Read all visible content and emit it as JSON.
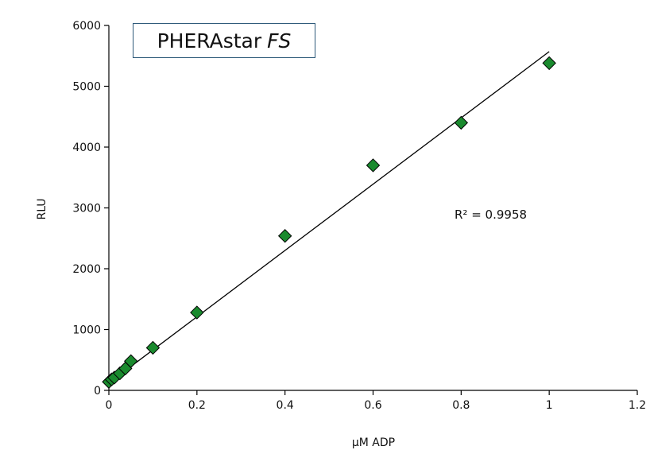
{
  "chart_data": {
    "type": "scatter",
    "title": "",
    "xlabel": "μM ADP",
    "ylabel": "RLU",
    "xlim": [
      0,
      1.2
    ],
    "ylim": [
      0,
      6000
    ],
    "x_ticks": [
      "0",
      "0.2",
      "0.4",
      "0.6",
      "0.8",
      "1",
      "1.2"
    ],
    "y_ticks": [
      "0",
      "1000",
      "2000",
      "3000",
      "4000",
      "5000",
      "6000"
    ],
    "grid": false,
    "series": [
      {
        "marker": "diamond",
        "color": "#1a8a2e",
        "x": [
          0,
          0.00625,
          0.0125,
          0.025,
          0.0375,
          0.05,
          0.1,
          0.2,
          0.4,
          0.6,
          0.8,
          1.0
        ],
        "y": [
          140,
          180,
          210,
          280,
          360,
          480,
          700,
          1280,
          2540,
          3700,
          4400,
          5380
        ]
      }
    ],
    "trendline": {
      "type": "linear",
      "x_range": [
        0,
        1.0
      ],
      "y_range": [
        120,
        5570
      ],
      "color": "#000000"
    },
    "annotations": [
      {
        "text": "R² = 0.9958"
      }
    ],
    "label_box": {
      "text_plain": "PHERAstar",
      "text_italic": "FS",
      "border_color": "#2e5a7a"
    }
  }
}
